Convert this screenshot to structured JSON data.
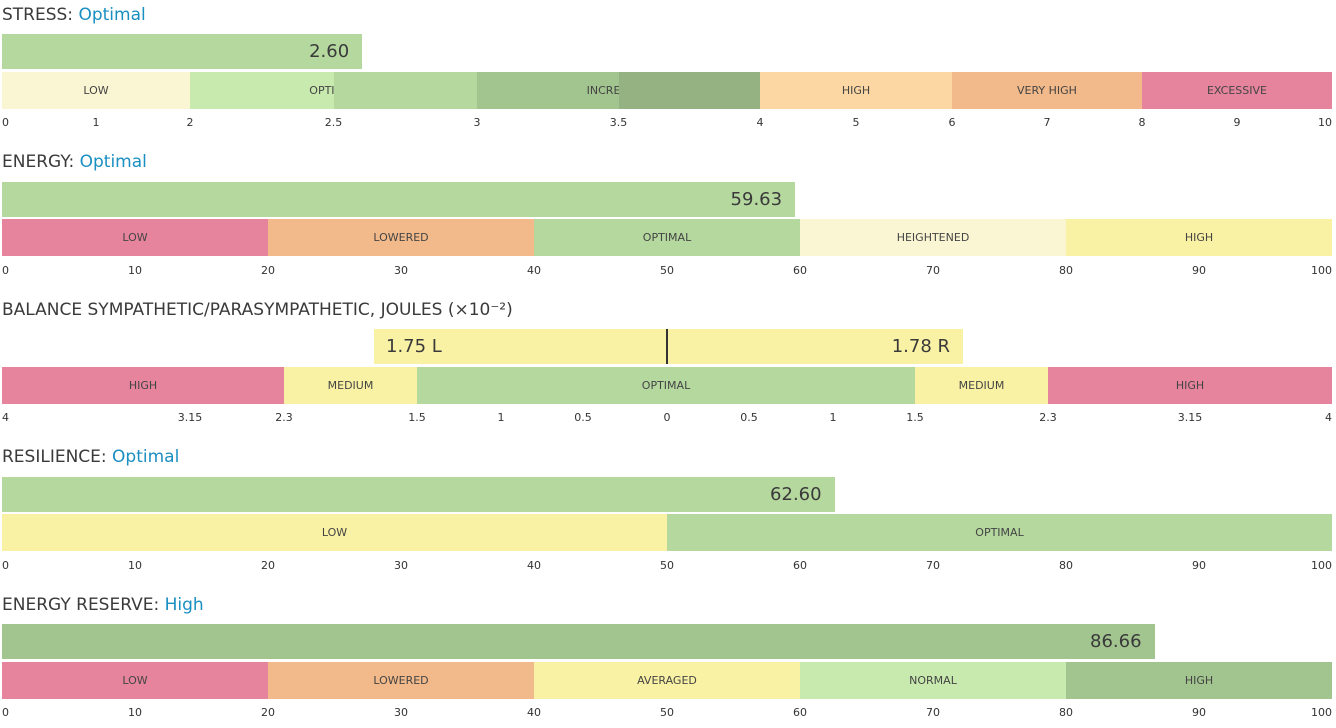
{
  "colors": {
    "red": "#e5849c",
    "orange": "#f2b98a",
    "peach": "#fcd7a4",
    "yellow": "#f9f2a4",
    "cream": "#faf6d3",
    "lightgreen": "#c8eaaf",
    "green": "#b5d89f",
    "darkgreen": "#a2c48f",
    "darkergreen": "#95b283",
    "status_blue": "#1a8fc1"
  },
  "stress": {
    "label": "STRESS:",
    "status": "Optimal",
    "value": 2.6,
    "value_text": "2.60",
    "segments": [
      {
        "label": "LOW",
        "from": 0,
        "to": 2,
        "color": "#faf6d3"
      },
      {
        "label": "OPTIMAL",
        "from": 2,
        "to": 3,
        "color": "#c8eaaf"
      },
      {
        "label": "INCREASED",
        "from": 3,
        "to": 4,
        "color": "#a2c48f"
      },
      {
        "label": "HIGH",
        "from": 4,
        "to": 6,
        "color": "#fcd7a4"
      },
      {
        "label": "VERY HIGH",
        "from": 6,
        "to": 8,
        "color": "#f2b98a"
      },
      {
        "label": "EXCESSIVE",
        "from": 8,
        "to": 10,
        "color": "#e5849c"
      }
    ],
    "ticks": [
      "0",
      "1",
      "2",
      "2.5",
      "3",
      "3.5",
      "4",
      "5",
      "6",
      "7",
      "8",
      "9",
      "10"
    ]
  },
  "energy": {
    "label": "ENERGY:",
    "status": "Optimal",
    "value": 59.63,
    "value_text": "59.63",
    "segments": [
      {
        "label": "LOW",
        "from": 0,
        "to": 20,
        "color": "#e5849c"
      },
      {
        "label": "LOWERED",
        "from": 20,
        "to": 40,
        "color": "#f2b98a"
      },
      {
        "label": "OPTIMAL",
        "from": 40,
        "to": 60,
        "color": "#b5d89f"
      },
      {
        "label": "HEIGHTENED",
        "from": 60,
        "to": 80,
        "color": "#faf6d3"
      },
      {
        "label": "HIGH",
        "from": 80,
        "to": 100,
        "color": "#f9f2a4"
      }
    ],
    "ticks": [
      "0",
      "10",
      "20",
      "30",
      "40",
      "50",
      "60",
      "70",
      "80",
      "90",
      "100"
    ]
  },
  "balance": {
    "label": "BALANCE SYMPATHETIC/PARASYMPATHETIC, JOULES (×10⁻²)",
    "left_value": 1.75,
    "right_value": 1.78,
    "left_text": "1.75 L",
    "right_text": "1.78 R",
    "segments": [
      {
        "label": "HIGH",
        "color": "#e5849c"
      },
      {
        "label": "MEDIUM",
        "color": "#f9f2a4"
      },
      {
        "label": "OPTIMAL",
        "color": "#b5d89f"
      },
      {
        "label": "MEDIUM",
        "color": "#f9f2a4"
      },
      {
        "label": "HIGH",
        "color": "#e5849c"
      }
    ],
    "ticks": [
      "4",
      "3.15",
      "2.3",
      "1.5",
      "1",
      "0.5",
      "0",
      "0.5",
      "1",
      "1.5",
      "2.3",
      "3.15",
      "4"
    ]
  },
  "resilience": {
    "label": "RESILIENCE:",
    "status": "Optimal",
    "value": 62.6,
    "value_text": "62.60",
    "segments": [
      {
        "label": "LOW",
        "from": 0,
        "to": 50,
        "color": "#f9f2a4"
      },
      {
        "label": "OPTIMAL",
        "from": 50,
        "to": 100,
        "color": "#b5d89f"
      }
    ],
    "ticks": [
      "0",
      "10",
      "20",
      "30",
      "40",
      "50",
      "60",
      "70",
      "80",
      "90",
      "100"
    ]
  },
  "reserve": {
    "label": "ENERGY RESERVE:",
    "status": "High",
    "value": 86.66,
    "value_text": "86.66",
    "segments": [
      {
        "label": "LOW",
        "from": 0,
        "to": 20,
        "color": "#e5849c"
      },
      {
        "label": "LOWERED",
        "from": 20,
        "to": 40,
        "color": "#f2b98a"
      },
      {
        "label": "AVERAGED",
        "from": 40,
        "to": 60,
        "color": "#f9f2a4"
      },
      {
        "label": "NORMAL",
        "from": 60,
        "to": 80,
        "color": "#c8eaaf"
      },
      {
        "label": "HIGH",
        "from": 80,
        "to": 100,
        "color": "#a2c48f"
      }
    ],
    "ticks": [
      "0",
      "10",
      "20",
      "30",
      "40",
      "50",
      "60",
      "70",
      "80",
      "90",
      "100"
    ]
  }
}
